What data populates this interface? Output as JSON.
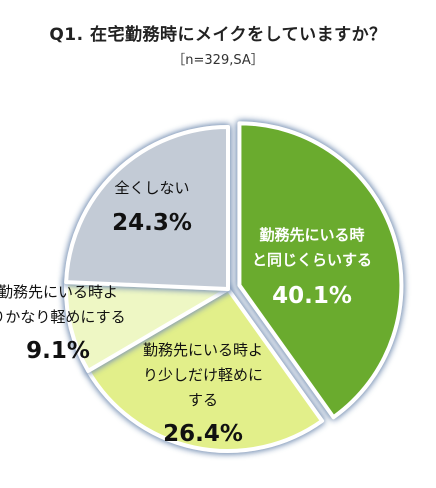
{
  "title": "Q1. 在宅勤務時にメイクをしていますか？",
  "subtitle": "［n=329,SA］",
  "chart_data": {
    "type": "pie",
    "start_angle_deg": 0,
    "direction": "clockwise",
    "slices": [
      {
        "label_lines": [
          "勤務先にいる時",
          "と同じくらいする"
        ],
        "value": 40.1,
        "value_label": "40.1%",
        "color": "#6aab2e",
        "text_color": "#ffffff",
        "exploded": true
      },
      {
        "label_lines": [
          "勤務先にいる時よ",
          "り少しだけ軽めに",
          "する"
        ],
        "value": 26.4,
        "value_label": "26.4%",
        "color": "#e2ef8a",
        "text_color": "#111111",
        "exploded": false
      },
      {
        "label_lines": [
          "勤務先にいる時よ",
          "りかなり軽めにする"
        ],
        "value": 9.1,
        "value_label": "9.1%",
        "color": "#eef7c4",
        "text_color": "#111111",
        "exploded": false
      },
      {
        "label_lines": [
          "全くしない"
        ],
        "value": 24.3,
        "value_label": "24.3%",
        "color": "#c3cbd6",
        "text_color": "#111111",
        "exploded": false
      }
    ],
    "glow_color": "#7f97b8"
  }
}
